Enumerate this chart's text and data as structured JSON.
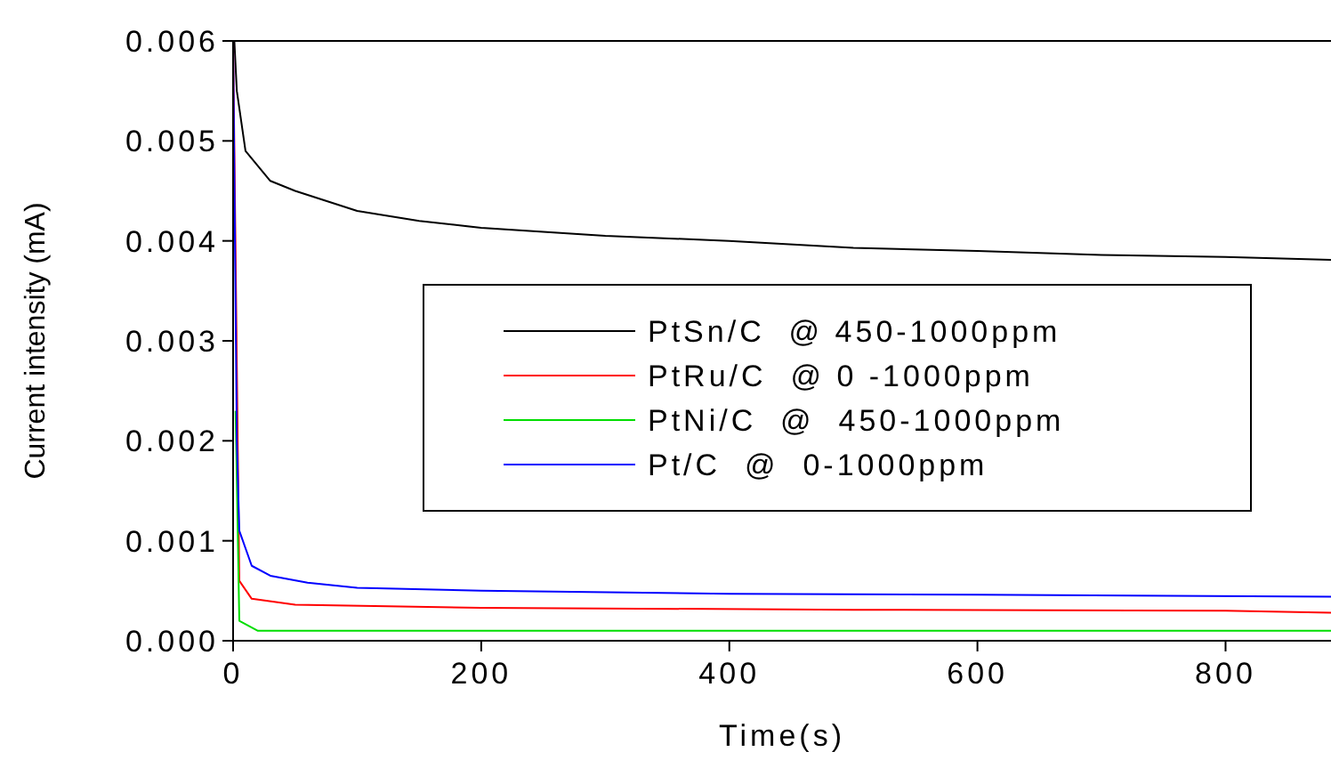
{
  "chart_data": {
    "type": "line",
    "xlabel": "Time(s)",
    "ylabel": "Current intensity (mA)",
    "xlim": [
      0,
      885
    ],
    "xticks": [
      0,
      200,
      400,
      600,
      800
    ],
    "ylim": [
      0,
      0.006
    ],
    "yticks": [
      {
        "value": 0,
        "label": "0.000"
      },
      {
        "value": 0.001,
        "label": "0.001"
      },
      {
        "value": 0.002,
        "label": "0.002"
      },
      {
        "value": 0.003,
        "label": "0.003"
      },
      {
        "value": 0.004,
        "label": "0.004"
      },
      {
        "value": 0.005,
        "label": "0.005"
      },
      {
        "value": 0.006,
        "label": "0.006"
      }
    ],
    "grid": false,
    "legend": "right",
    "line_style": "solid",
    "series": [
      {
        "name": "PtSn/C  @ 450-1000ppm",
        "color": "#000000",
        "x": [
          1,
          3,
          10,
          30,
          50,
          75,
          100,
          150,
          200,
          300,
          400,
          500,
          600,
          700,
          800,
          885
        ],
        "values": [
          0.006,
          0.0055,
          0.0049,
          0.0046,
          0.0045,
          0.0044,
          0.0043,
          0.0042,
          0.00413,
          0.00405,
          0.004,
          0.00393,
          0.0039,
          0.00386,
          0.00384,
          0.00381
        ]
      },
      {
        "name": "PtRu/C  @ 0 -1000ppm",
        "color": "#ff0000",
        "x": [
          0,
          5,
          15,
          50,
          200,
          500,
          800,
          885
        ],
        "values": [
          0.006,
          0.0006,
          0.00042,
          0.00036,
          0.00033,
          0.00031,
          0.0003,
          0.00028
        ]
      },
      {
        "name": "PtNi/C  @  450-1000ppm",
        "color": "#00dd00",
        "x": [
          2,
          5,
          20,
          100,
          400,
          885
        ],
        "values": [
          0.0023,
          0.0002,
          0.0001,
          0.0001,
          0.0001,
          0.0001
        ]
      },
      {
        "name": "Pt/C  @  0-1000ppm",
        "color": "#0000ff",
        "x": [
          0,
          3,
          5,
          15,
          30,
          60,
          100,
          200,
          400,
          600,
          885
        ],
        "values": [
          0.006,
          0.002,
          0.0011,
          0.00075,
          0.00065,
          0.00058,
          0.00053,
          0.0005,
          0.00047,
          0.00046,
          0.00044
        ]
      }
    ]
  }
}
